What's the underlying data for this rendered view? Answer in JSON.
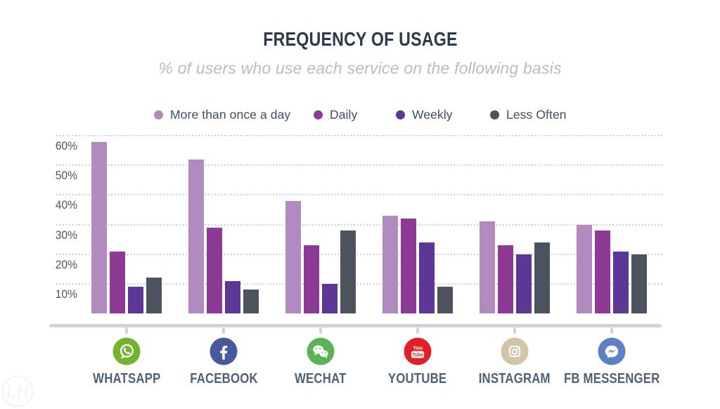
{
  "chart_data": {
    "type": "bar",
    "title": "FREQUENCY OF USAGE",
    "subtitle": "% of users who use each service on the following basis",
    "categories": [
      "WHATSAPP",
      "FACEBOOK",
      "WECHAT",
      "YOUTUBE",
      "INSTAGRAM",
      "FB MESSENGER"
    ],
    "category_icons": [
      "whatsapp-icon",
      "facebook-icon",
      "wechat-icon",
      "youtube-icon",
      "instagram-icon",
      "fb-messenger-icon"
    ],
    "series": [
      {
        "name": "More than once a day",
        "color": "#b18abf",
        "values": [
          58,
          52,
          38,
          33,
          31,
          30
        ]
      },
      {
        "name": "Daily",
        "color": "#8c3a96",
        "values": [
          21,
          29,
          23,
          32,
          23,
          28
        ]
      },
      {
        "name": "Weekly",
        "color": "#5d3796",
        "values": [
          9,
          11,
          10,
          24,
          20,
          21
        ]
      },
      {
        "name": "Less Often",
        "color": "#4c525e",
        "values": [
          12,
          8,
          28,
          9,
          24,
          20
        ]
      }
    ],
    "y_tick_labels": [
      "10%",
      "20%",
      "30%",
      "40%",
      "50%",
      "60%"
    ],
    "y_tick_values": [
      10,
      20,
      30,
      40,
      50,
      60
    ],
    "ylim": [
      0,
      63
    ],
    "unit": "%",
    "grid": "dotted horizontal",
    "legend_position": "top"
  },
  "icon_colors": {
    "whatsapp": "#73b32f",
    "facebook": "#48599e",
    "wechat": "#5bb257",
    "youtube": "#df2127",
    "instagram": "#d2c4a6",
    "fb_messenger": "#5b80c6"
  },
  "theme": {
    "background": "#ffffff",
    "title_color": "#2b3b4d",
    "subtitle_color": "#b5bcc6",
    "legend_text_color": "#3f4e60",
    "axis_label_color": "#46586b",
    "category_label_color": "#4b6278",
    "gridline_color": "#c9c6d6",
    "axis_line_color": "#ced3de"
  },
  "watermark": {
    "monogram": "LH",
    "color": "#f3e9da"
  }
}
